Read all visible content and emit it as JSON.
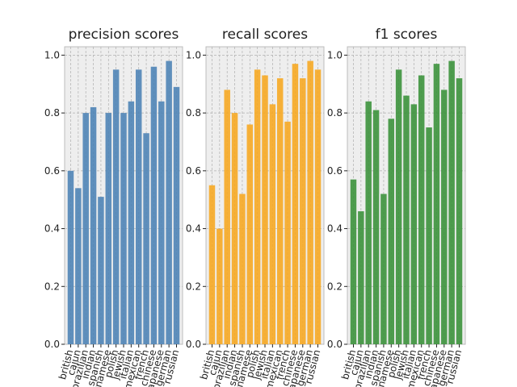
{
  "chart_data": [
    {
      "type": "bar",
      "title": "precision scores",
      "categories": [
        "british",
        "cajun",
        "brazilian",
        "indian",
        "spanish",
        "vietnamese",
        "polish",
        "jewish",
        "italian",
        "mexican",
        "french",
        "chinese",
        "japanese",
        "german",
        "russian"
      ],
      "values": [
        0.6,
        0.54,
        0.8,
        0.82,
        0.51,
        0.8,
        0.95,
        0.8,
        0.84,
        0.95,
        0.73,
        0.96,
        0.84,
        0.98,
        0.89
      ],
      "color": "#4f84b6",
      "ylim": [
        0,
        1.029
      ],
      "yticks": [
        {
          "value": 0,
          "label": "0.0"
        },
        0.2,
        0.4,
        0.6,
        0.8,
        {
          "value": 1,
          "label": "1.0"
        }
      ],
      "grid": true
    },
    {
      "type": "bar",
      "title": "recall scores",
      "categories": [
        "british",
        "cajun",
        "brazilian",
        "indian",
        "spanish",
        "vietnamese",
        "polish",
        "jewish",
        "italian",
        "mexican",
        "french",
        "chinese",
        "japanese",
        "german",
        "russian"
      ],
      "values": [
        0.55,
        0.4,
        0.88,
        0.8,
        0.52,
        0.76,
        0.95,
        0.93,
        0.83,
        0.92,
        0.77,
        0.97,
        0.92,
        0.98,
        0.95
      ],
      "color": "#f6a823",
      "ylim": [
        0,
        1.029
      ],
      "yticks": [
        {
          "value": 0,
          "label": "0.0"
        },
        0.2,
        0.4,
        0.6,
        0.8,
        {
          "value": 1,
          "label": "1.0"
        }
      ],
      "grid": true
    },
    {
      "type": "bar",
      "title": "f1 scores",
      "categories": [
        "british",
        "cajun",
        "brazilian",
        "indian",
        "spanish",
        "vietnamese",
        "polish",
        "jewish",
        "italian",
        "mexican",
        "french",
        "chinese",
        "japanese",
        "german",
        "russian"
      ],
      "values": [
        0.57,
        0.46,
        0.84,
        0.81,
        0.52,
        0.78,
        0.95,
        0.86,
        0.83,
        0.93,
        0.75,
        0.97,
        0.88,
        0.98,
        0.92
      ],
      "color": "#3c923c",
      "ylim": [
        0,
        1.029
      ],
      "yticks": [
        {
          "value": 0,
          "label": "0.0"
        },
        0.2,
        0.4,
        0.6,
        0.8,
        {
          "value": 1,
          "label": "1.0"
        }
      ],
      "grid": true
    }
  ]
}
